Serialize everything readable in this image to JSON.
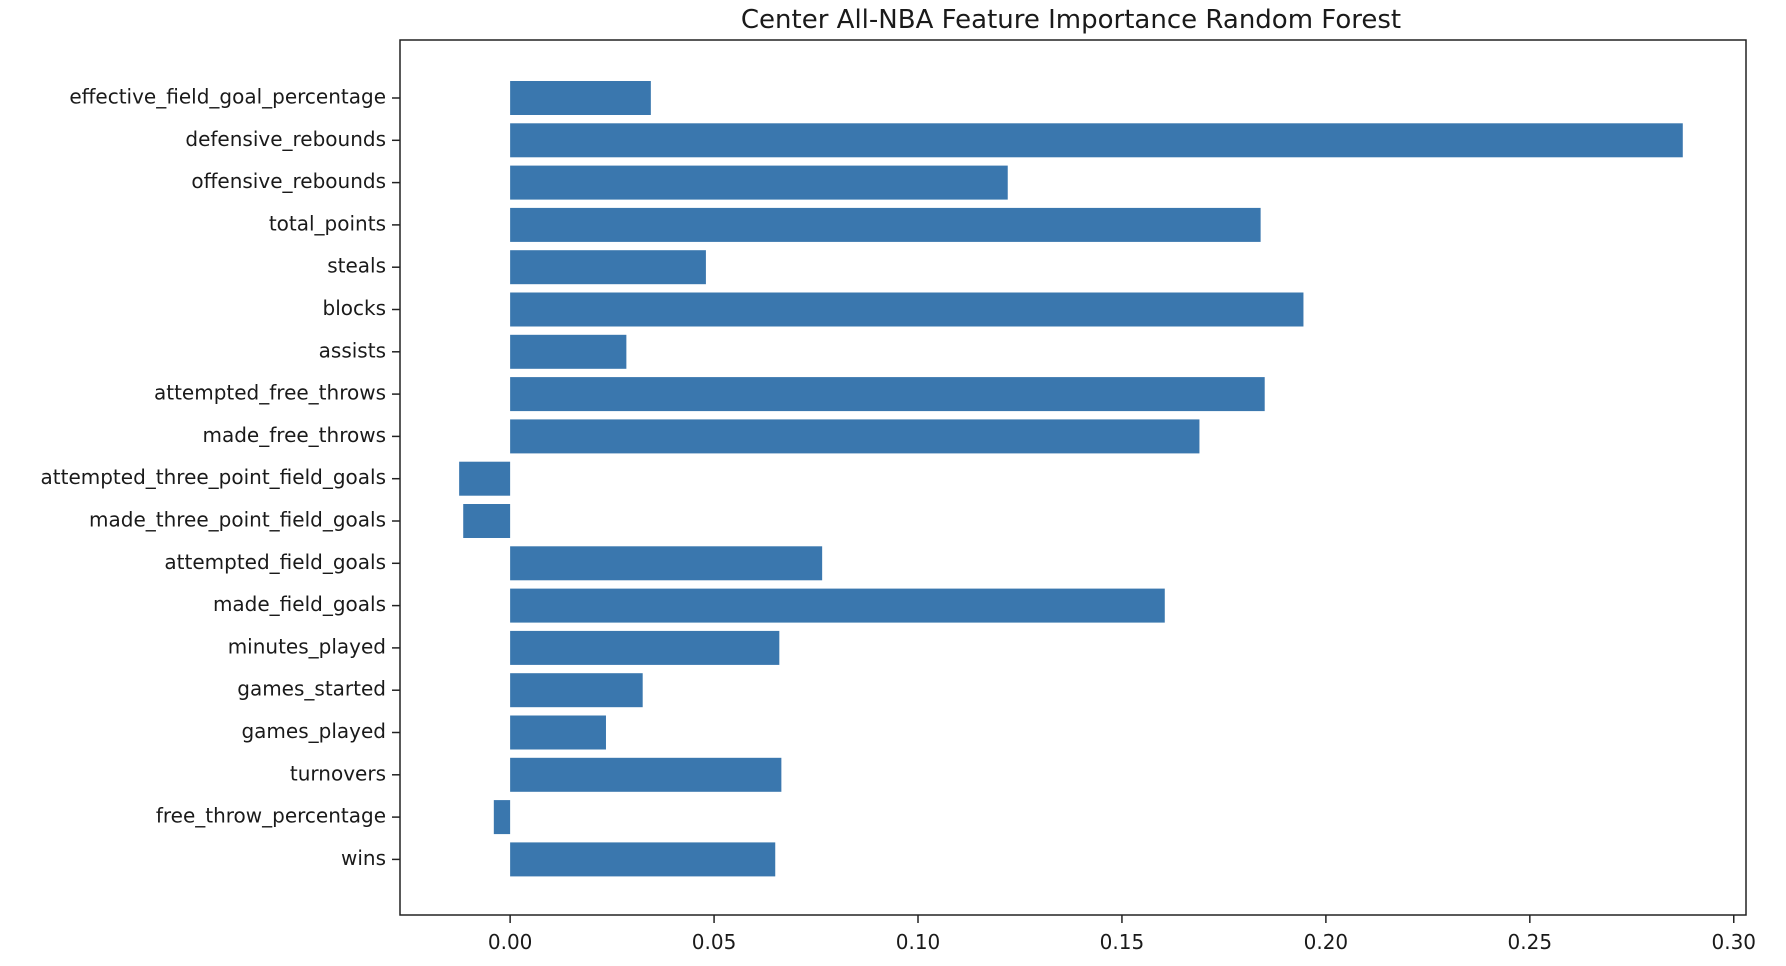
{
  "chart_data": {
    "type": "bar",
    "orientation": "horizontal",
    "title": "Center All-NBA Feature Importance Random Forest",
    "xlabel": "",
    "ylabel": "",
    "xlim": [
      -0.027,
      0.303
    ],
    "x_ticks": [
      0.0,
      0.05,
      0.1,
      0.15,
      0.2,
      0.25,
      0.3
    ],
    "x_tick_labels": [
      "0.00",
      "0.05",
      "0.10",
      "0.15",
      "0.20",
      "0.25",
      "0.30"
    ],
    "grid": false,
    "bar_color": "#3a77ae",
    "categories": [
      "effective_field_goal_percentage",
      "defensive_rebounds",
      "offensive_rebounds",
      "total_points",
      "steals",
      "blocks",
      "assists",
      "attempted_free_throws",
      "made_free_throws",
      "attempted_three_point_field_goals",
      "made_three_point_field_goals",
      "attempted_field_goals",
      "made_field_goals",
      "minutes_played",
      "games_started",
      "games_played",
      "turnovers",
      "free_throw_percentage",
      "wins"
    ],
    "values": [
      0.0345,
      0.2875,
      0.122,
      0.184,
      0.048,
      0.1945,
      0.0285,
      0.185,
      0.169,
      -0.0125,
      -0.0115,
      0.0765,
      0.1605,
      0.066,
      0.0325,
      0.0235,
      0.0665,
      -0.004,
      0.065
    ]
  }
}
